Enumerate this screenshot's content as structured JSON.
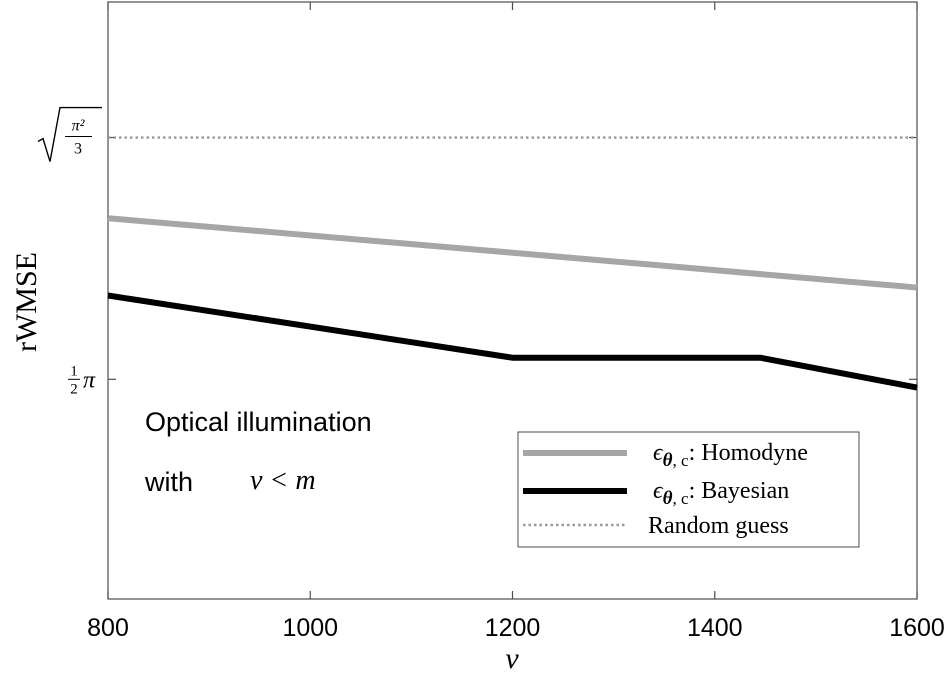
{
  "chart_data": {
    "type": "line",
    "xlabel": "ν",
    "ylabel": "rWMSE",
    "xlim": [
      800,
      1600
    ],
    "x_ticks": [
      800,
      1000,
      1200,
      1400,
      1600
    ],
    "x_tick_labels": [
      "800",
      "1000",
      "1200",
      "1400",
      "1600"
    ],
    "ylim": [
      1.35,
      1.95
    ],
    "y_ticks": [
      {
        "value": 1.5708,
        "label_num": "1",
        "label_den": "2",
        "label_sym": "π"
      },
      {
        "value": 1.8138,
        "label_root_num": "π²",
        "label_root_den": "3"
      }
    ],
    "grid": false,
    "legend_position": "bottom-right",
    "annotation": {
      "line1": "Optical illumination",
      "line2_word": "with",
      "line2_math": "ν < m"
    },
    "series": [
      {
        "name": "ϵθ,c: Homodyne",
        "label_prefix": "ϵ",
        "label_sub_bold": "θ",
        "label_sub_rest": ", c",
        "label_suffix": ": Homodyne",
        "color": "#a6a6a6",
        "style": "solid",
        "x": [
          800,
          1200,
          1600
        ],
        "y": [
          1.7327,
          1.698,
          1.663
        ]
      },
      {
        "name": "ϵθ,c: Bayesian",
        "label_prefix": "ϵ",
        "label_sub_bold": "θ",
        "label_sub_rest": ", c",
        "label_suffix": ": Bayesian",
        "color": "#000000",
        "style": "solid",
        "x": [
          800,
          1200,
          1445,
          1600
        ],
        "y": [
          1.655,
          1.5925,
          1.5925,
          1.5625
        ]
      },
      {
        "name": "Random guess",
        "label": "Random guess",
        "color": "#999999",
        "style": "dotted",
        "x": [
          800,
          1600
        ],
        "y": [
          1.8138,
          1.8138
        ]
      }
    ]
  }
}
